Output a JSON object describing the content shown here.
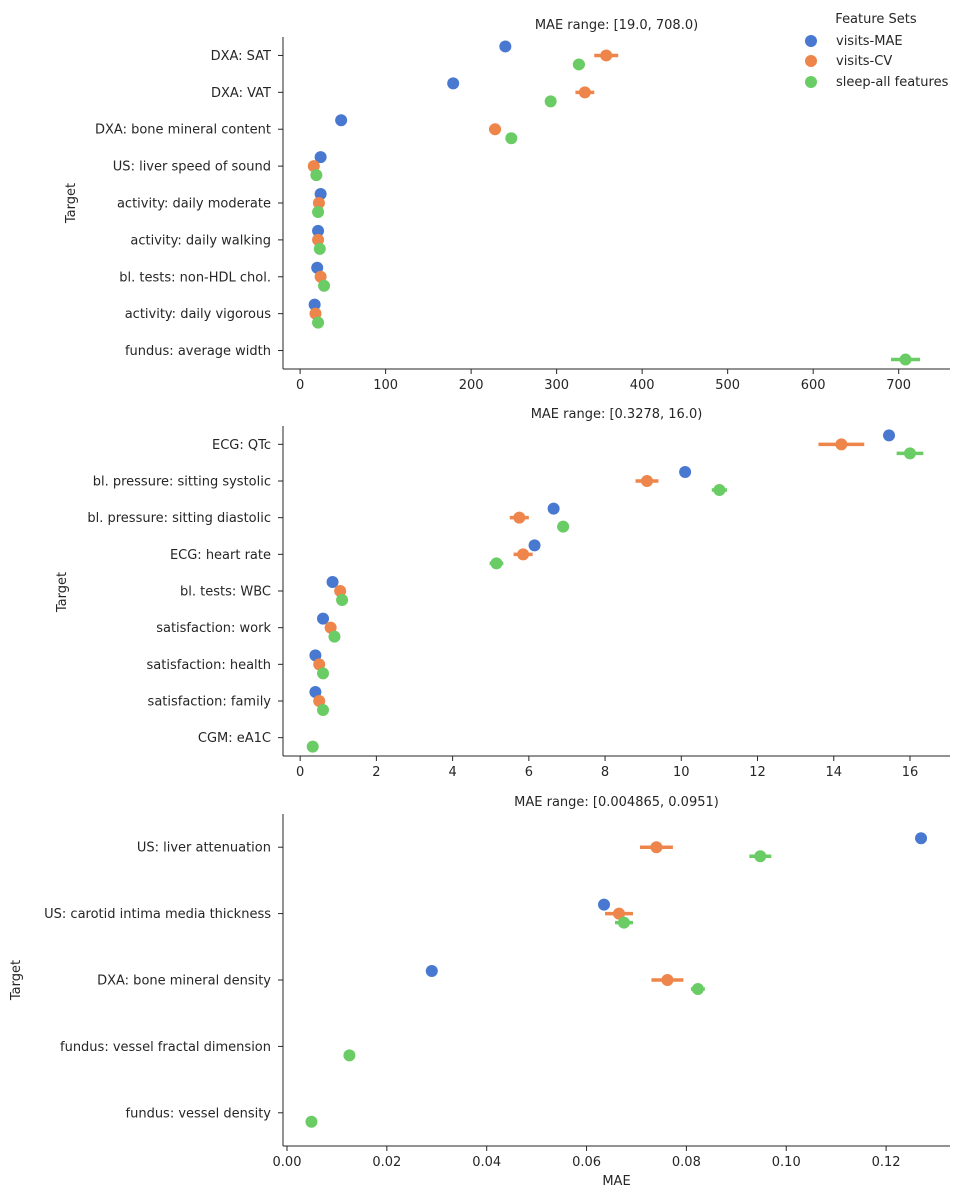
{
  "legend": {
    "title": "Feature Sets",
    "entries": [
      {
        "name": "visits-MAE",
        "color": "#4878d0"
      },
      {
        "name": "visits-CV",
        "color": "#ee854a"
      },
      {
        "name": "sleep-all features",
        "color": "#6acc64"
      }
    ]
  },
  "chart_data": [
    {
      "type": "scatter",
      "title": "MAE range: [19.0, 708.0)",
      "xlabel": "",
      "ylabel": "Target",
      "xlim": [
        -20,
        760
      ],
      "xticks": [
        0,
        100,
        200,
        300,
        400,
        500,
        600,
        700
      ],
      "xtick_labels": [
        "0",
        "100",
        "200",
        "300",
        "400",
        "500",
        "600",
        "700"
      ],
      "categories": [
        "DXA: SAT",
        "DXA: VAT",
        "DXA: bone mineral content",
        "US: liver speed of sound",
        "activity: daily moderate",
        "activity: daily walking",
        "bl. tests: non-HDL chol.",
        "activity: daily vigorous",
        "fundus: average width"
      ],
      "series": [
        {
          "name": "visits-MAE",
          "values": [
            240,
            179,
            48,
            24,
            24,
            21,
            20,
            17,
            null
          ],
          "errors": [
            0,
            0,
            0,
            0,
            0,
            0,
            0,
            0,
            null
          ]
        },
        {
          "name": "visits-CV",
          "values": [
            358,
            333,
            228,
            16,
            22,
            21,
            24,
            18,
            null
          ],
          "errors": [
            14,
            11,
            7,
            0,
            0,
            0,
            0,
            0,
            null
          ]
        },
        {
          "name": "sleep-all features",
          "values": [
            326,
            293,
            247,
            19,
            21,
            23,
            28,
            21,
            708
          ],
          "errors": [
            7,
            0,
            0,
            0,
            0,
            0,
            0,
            0,
            17
          ]
        }
      ]
    },
    {
      "type": "scatter",
      "title": "MAE range: [0.3278, 16.0)",
      "xlabel": "",
      "ylabel": "Target",
      "xlim": [
        -0.45,
        17.05
      ],
      "xticks": [
        0,
        2,
        4,
        6,
        8,
        10,
        12,
        14,
        16
      ],
      "xtick_labels": [
        "0",
        "2",
        "4",
        "6",
        "8",
        "10",
        "12",
        "14",
        "16"
      ],
      "categories": [
        "ECG: QTc",
        "bl. pressure: sitting systolic",
        "bl. pressure: sitting diastolic",
        "ECG: heart rate",
        "bl. tests: WBC",
        "satisfaction: work",
        "satisfaction: health",
        "satisfaction: family",
        "CGM: eA1C"
      ],
      "series": [
        {
          "name": "visits-MAE",
          "values": [
            15.45,
            10.1,
            6.65,
            6.15,
            0.85,
            0.6,
            0.4,
            0.4,
            null
          ],
          "errors": [
            0,
            0,
            0,
            0,
            0,
            0,
            0,
            0,
            null
          ]
        },
        {
          "name": "visits-CV",
          "values": [
            14.2,
            9.1,
            5.75,
            5.85,
            1.05,
            0.8,
            0.5,
            0.5,
            null
          ],
          "errors": [
            0.6,
            0.3,
            0.25,
            0.25,
            0,
            0,
            0,
            0,
            null
          ]
        },
        {
          "name": "sleep-all features",
          "values": [
            16.0,
            11.0,
            6.9,
            5.15,
            1.1,
            0.9,
            0.6,
            0.6,
            0.33
          ],
          "errors": [
            0.35,
            0.2,
            0.15,
            0.18,
            0,
            0,
            0,
            0,
            0
          ]
        }
      ]
    },
    {
      "type": "scatter",
      "title": "MAE range: [0.004865, 0.0951)",
      "xlabel": "MAE",
      "ylabel": "Target",
      "xlim": [
        -0.0008,
        0.1328
      ],
      "xticks": [
        0.0,
        0.02,
        0.04,
        0.06,
        0.08,
        0.1,
        0.12
      ],
      "xtick_labels": [
        "0.00",
        "0.02",
        "0.04",
        "0.06",
        "0.08",
        "0.10",
        "0.12"
      ],
      "categories": [
        "US: liver attenuation",
        "US: carotid intima media thickness",
        "DXA: bone mineral density",
        "fundus: vessel fractal dimension",
        "fundus: vessel density"
      ],
      "series": [
        {
          "name": "visits-MAE",
          "values": [
            0.127,
            0.0635,
            0.029,
            null,
            null
          ],
          "errors": [
            0,
            0,
            0,
            null,
            null
          ]
        },
        {
          "name": "visits-CV",
          "values": [
            0.074,
            0.0665,
            0.0762,
            null,
            null
          ],
          "errors": [
            0.0033,
            0.0028,
            0.0032,
            null,
            null
          ]
        },
        {
          "name": "sleep-all features",
          "values": [
            0.0948,
            0.0675,
            0.0823,
            0.0125,
            0.0049
          ],
          "errors": [
            0.0022,
            0.0018,
            0.0014,
            0,
            0
          ]
        }
      ]
    }
  ]
}
